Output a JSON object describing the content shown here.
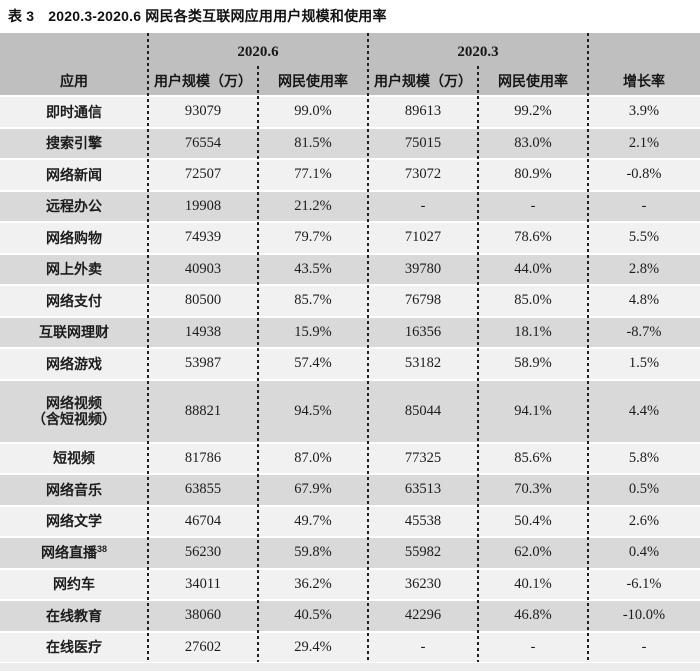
{
  "title": {
    "prefix": "表 3",
    "text": "2020.3-2020.6 网民各类互联网应用用户规模和使用率"
  },
  "chart_data": {
    "type": "table",
    "title": "表 3 2020.3-2020.6 网民各类互联网应用用户规模和使用率",
    "column_groups": [
      "2020.6",
      "2020.3"
    ],
    "columns": [
      "应用",
      "用户规模（万）",
      "网民使用率",
      "用户规模（万）",
      "网民使用率",
      "增长率"
    ]
  },
  "table": {
    "header": {
      "year_a": "2020.6",
      "year_b": "2020.3",
      "app": "应用",
      "scale_a": "用户规模（万）",
      "rate_a": "网民使用率",
      "scale_b": "用户规模（万）",
      "rate_b": "网民使用率",
      "growth": "增长率"
    },
    "rows": [
      {
        "app": "即时通信",
        "values": [
          "93079",
          "99.0%",
          "89613",
          "99.2%",
          "3.9%"
        ]
      },
      {
        "app": "搜索引擎",
        "values": [
          "76554",
          "81.5%",
          "75015",
          "83.0%",
          "2.1%"
        ]
      },
      {
        "app": "网络新闻",
        "values": [
          "72507",
          "77.1%",
          "73072",
          "80.9%",
          "-0.8%"
        ]
      },
      {
        "app": "远程办公",
        "values": [
          "19908",
          "21.2%",
          "-",
          "-",
          "-"
        ]
      },
      {
        "app": "网络购物",
        "values": [
          "74939",
          "79.7%",
          "71027",
          "78.6%",
          "5.5%"
        ]
      },
      {
        "app": "网上外卖",
        "values": [
          "40903",
          "43.5%",
          "39780",
          "44.0%",
          "2.8%"
        ]
      },
      {
        "app": "网络支付",
        "values": [
          "80500",
          "85.7%",
          "76798",
          "85.0%",
          "4.8%"
        ]
      },
      {
        "app": "互联网理财",
        "values": [
          "14938",
          "15.9%",
          "16356",
          "18.1%",
          "-8.7%"
        ]
      },
      {
        "app": "网络游戏",
        "values": [
          "53987",
          "57.4%",
          "53182",
          "58.9%",
          "1.5%"
        ]
      },
      {
        "app": "网络视频",
        "app_line2": "（含短视频）",
        "values": [
          "88821",
          "94.5%",
          "85044",
          "94.1%",
          "4.4%"
        ]
      },
      {
        "app": "短视频",
        "values": [
          "81786",
          "87.0%",
          "77325",
          "85.6%",
          "5.8%"
        ]
      },
      {
        "app": "网络音乐",
        "values": [
          "63855",
          "67.9%",
          "63513",
          "70.3%",
          "0.5%"
        ]
      },
      {
        "app": "网络文学",
        "values": [
          "46704",
          "49.7%",
          "45538",
          "50.4%",
          "2.6%"
        ]
      },
      {
        "app": "网络直播",
        "app_sup": "38",
        "values": [
          "56230",
          "59.8%",
          "55982",
          "62.0%",
          "0.4%"
        ]
      },
      {
        "app": "网约车",
        "values": [
          "34011",
          "36.2%",
          "36230",
          "40.1%",
          "-6.1%"
        ]
      },
      {
        "app": "在线教育",
        "values": [
          "38060",
          "40.5%",
          "42296",
          "46.8%",
          "-10.0%"
        ]
      },
      {
        "app": "在线医疗",
        "values": [
          "27602",
          "29.4%",
          "-",
          "-",
          "-"
        ]
      }
    ]
  },
  "colors": {
    "header_bg": "#bfbfbf",
    "row_light": "#f1f1f1",
    "row_dark": "#d9d9d9",
    "dash_line": "#1f1f1f"
  }
}
